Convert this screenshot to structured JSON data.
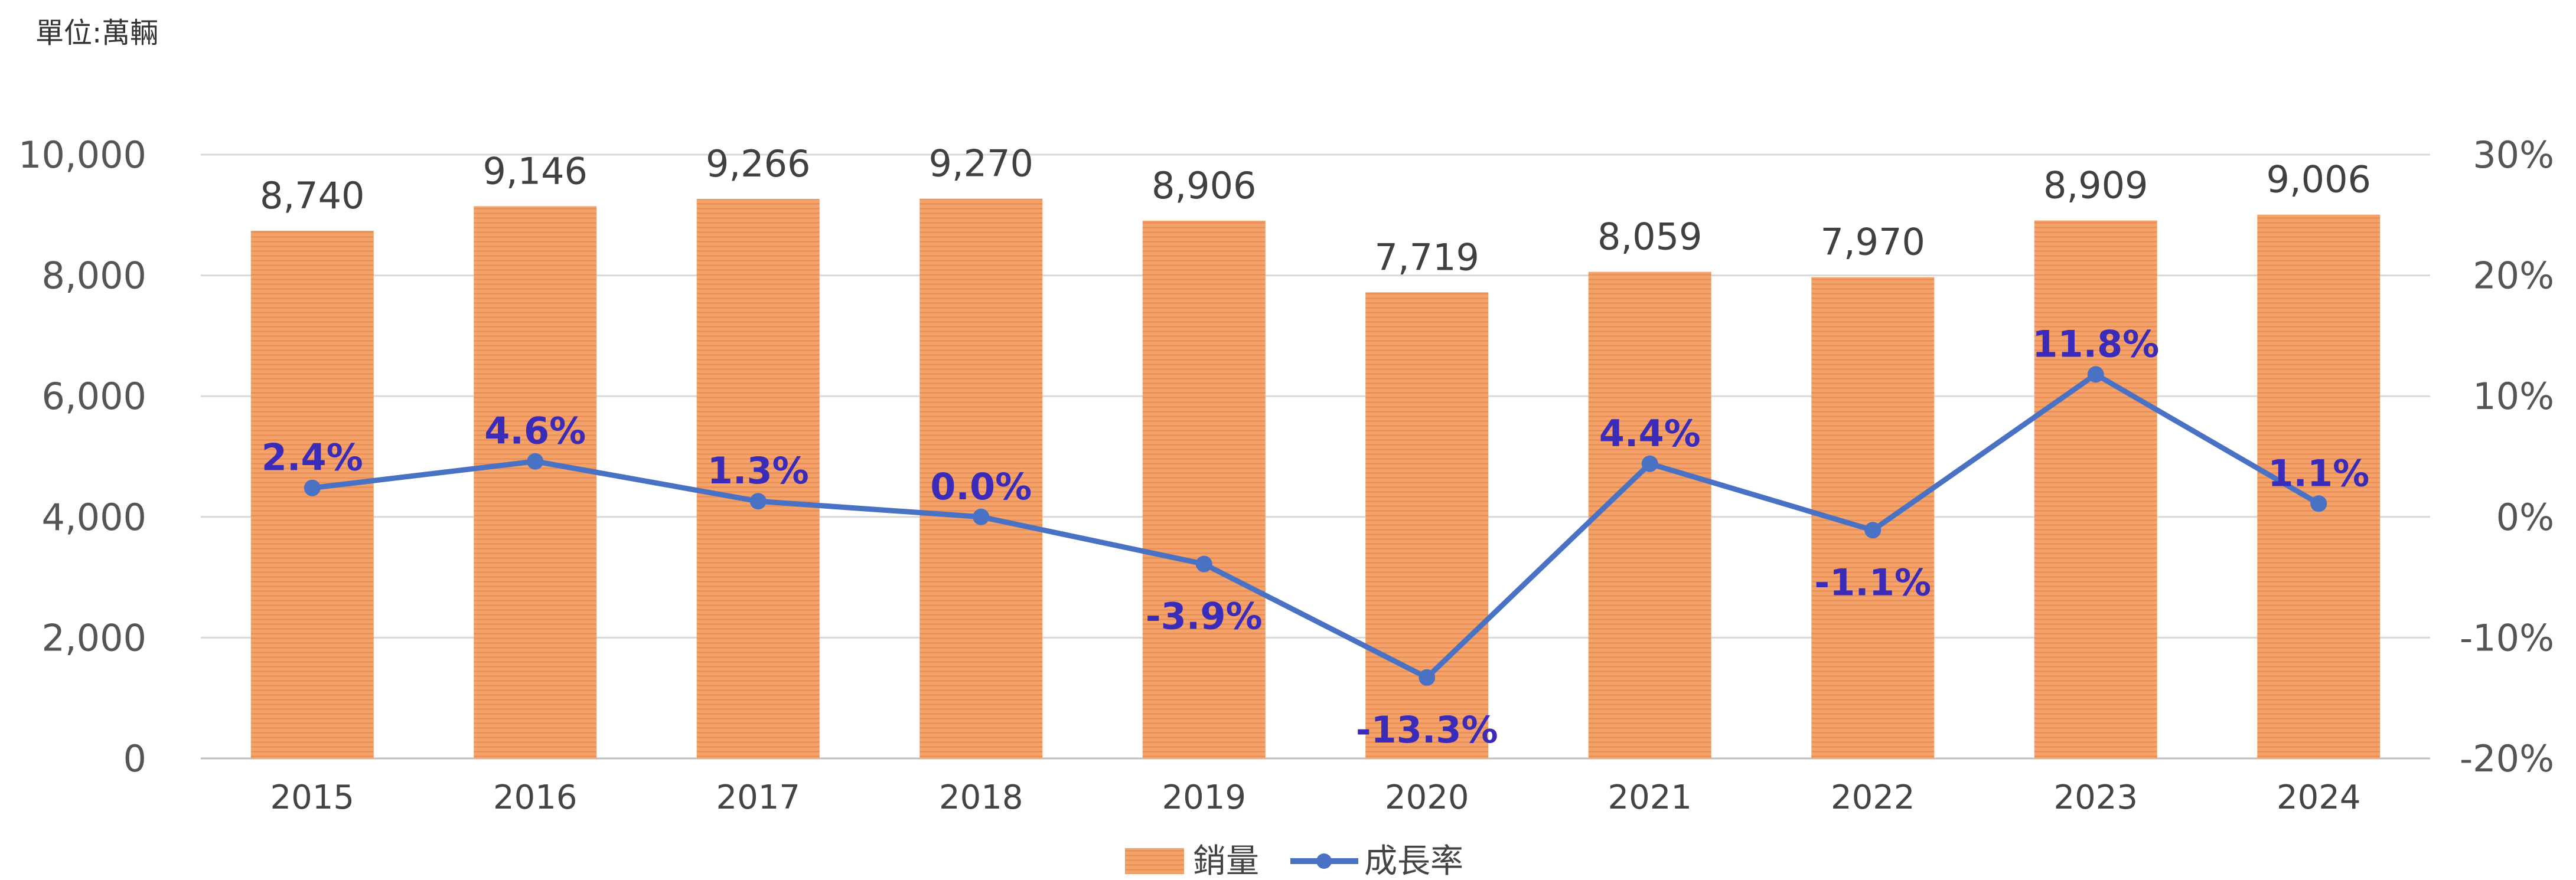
{
  "unit_label": "單位:萬輛",
  "colors": {
    "bar": "#f4a46a",
    "bar_stripe": "#e9935a",
    "line": "#4a72c4",
    "rate_label": "#3a2bb8",
    "grid": "#d9d9d9",
    "axis": "#bfbfbf"
  },
  "legend": {
    "bar_name": "銷量",
    "line_name": "成長率"
  },
  "chart_data": {
    "type": "bar",
    "categories": [
      "2015",
      "2016",
      "2017",
      "2018",
      "2019",
      "2020",
      "2021",
      "2022",
      "2023",
      "2024"
    ],
    "series": [
      {
        "name": "銷量",
        "type": "bar",
        "axis": "left",
        "values": [
          8740,
          9146,
          9266,
          9270,
          8906,
          7719,
          8059,
          7970,
          8909,
          9006
        ],
        "labels": [
          "8,740",
          "9,146",
          "9,266",
          "9,270",
          "8,906",
          "7,719",
          "8,059",
          "7,970",
          "8,909",
          "9,006"
        ]
      },
      {
        "name": "成長率",
        "type": "line",
        "axis": "right",
        "values": [
          2.4,
          4.6,
          1.3,
          0.0,
          -3.9,
          -13.3,
          4.4,
          -1.1,
          11.8,
          1.1
        ],
        "labels": [
          "2.4%",
          "4.6%",
          "1.3%",
          "0.0%",
          "-3.9%",
          "-13.3%",
          "4.4%",
          "-1.1%",
          "11.8%",
          "1.1%"
        ]
      }
    ],
    "y_left": {
      "lim": [
        0,
        10000
      ],
      "ticks": [
        0,
        2000,
        4000,
        6000,
        8000,
        10000
      ],
      "tick_labels": [
        "0",
        "2,000",
        "4,000",
        "6,000",
        "8,000",
        "10,000"
      ]
    },
    "y_right": {
      "lim": [
        -20,
        30
      ],
      "ticks": [
        -20,
        -10,
        0,
        10,
        20,
        30
      ],
      "tick_labels": [
        "-20%",
        "-10%",
        "0%",
        "10%",
        "20%",
        "30%"
      ]
    },
    "grid": true,
    "legend_position": "bottom"
  }
}
